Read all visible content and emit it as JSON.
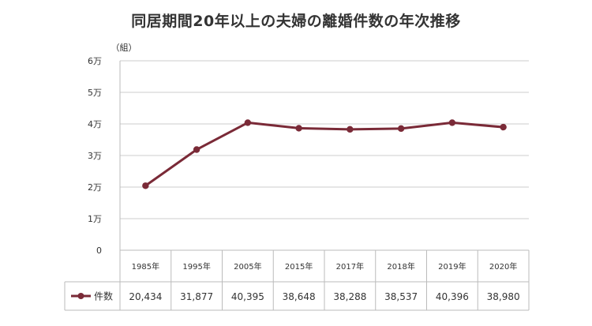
{
  "chart_data": {
    "type": "line",
    "title": "同居期間20年以上の夫婦の離婚件数の年次推移",
    "yunit": "（組）",
    "categories": [
      "1985年",
      "1995年",
      "2005年",
      "2015年",
      "2017年",
      "2018年",
      "2019年",
      "2020年"
    ],
    "series": [
      {
        "name": "件数",
        "values": [
          20434,
          31877,
          40395,
          38648,
          38288,
          38537,
          40396,
          38980
        ],
        "value_labels": [
          "20,434",
          "31,877",
          "40,395",
          "38,648",
          "38,288",
          "38,537",
          "40,396",
          "38,980"
        ],
        "color": "#7a2a37"
      }
    ],
    "ylim": [
      0,
      60000
    ],
    "yticks": [
      0,
      10000,
      20000,
      30000,
      40000,
      50000,
      60000
    ],
    "ytick_labels": [
      "0",
      "1万",
      "2万",
      "3万",
      "4万",
      "5万",
      "6万"
    ],
    "grid": true,
    "legend": "bottom-left data table"
  }
}
